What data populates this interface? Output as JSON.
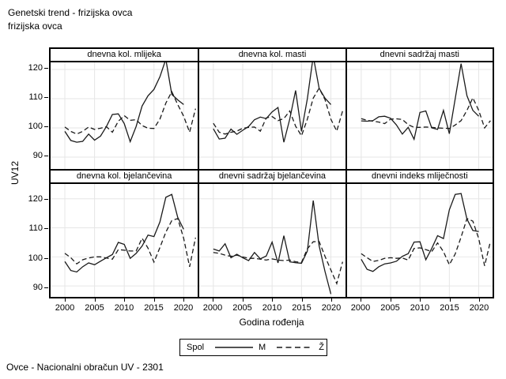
{
  "header": {
    "title_line1": "Genetski trend - frizijska ovca",
    "title_line2": "frizijska ovca"
  },
  "y_axis": {
    "label": "UV12",
    "ticks": [
      120,
      110,
      100,
      90
    ]
  },
  "x_axis": {
    "label": "Godina rođenja",
    "ticks": [
      2000,
      2005,
      2010,
      2015,
      2020
    ]
  },
  "legend": {
    "title": "Spol",
    "entries": [
      {
        "label": "M",
        "style": "solid"
      },
      {
        "label": "Ž",
        "style": "dashed"
      }
    ]
  },
  "footer": {
    "text": "Ovce - Nacionalni obračun UV - 2301"
  },
  "colors": {
    "line": "#1a1a1a",
    "grid": "#e6e6e6",
    "border": "#000000",
    "background": "#ffffff"
  },
  "chart_data": {
    "type": "line",
    "layout": "2x3 lattice, shared axes",
    "x": {
      "start_year": 2000,
      "m_end_year": 2020,
      "z_end_year": 2022,
      "tick_years": [
        2000,
        2005,
        2010,
        2015,
        2020
      ]
    },
    "ylim": [
      86,
      126
    ],
    "grid_values": [
      90,
      100,
      110,
      120
    ],
    "series_names": [
      "M",
      "Ž"
    ],
    "panels": [
      {
        "title": "dnevna kol. mlijeka",
        "M": [
          98.8,
          95.7,
          95.1,
          95.4,
          97.9,
          95.8,
          97.2,
          100.5,
          104.6,
          104.8,
          101.5,
          95.3,
          100.5,
          107.5,
          111,
          113.2,
          117.5,
          123.5,
          111.5,
          109.6,
          108
        ],
        "Z": [
          100.3,
          98.8,
          97.9,
          98.8,
          100.3,
          99.5,
          99.9,
          100.4,
          98.5,
          102.3,
          104.2,
          102.6,
          102.8,
          100.8,
          99.9,
          99.8,
          103,
          108.5,
          112.4,
          108,
          104,
          98.5,
          106.6
        ]
      },
      {
        "title": "dnevna kol. masti",
        "M": [
          99.7,
          96.2,
          96.5,
          99.6,
          97.8,
          99.2,
          100.5,
          102.8,
          103.7,
          103.2,
          105.5,
          107,
          95.1,
          103,
          112.8,
          98.8,
          110,
          124.5,
          113.6,
          110.2,
          108
        ],
        "Z": [
          101.6,
          98.5,
          97.9,
          98.5,
          98.9,
          99.9,
          100.2,
          100.3,
          98.9,
          103.4,
          103.9,
          102.5,
          103.2,
          105.8,
          100.6,
          97.3,
          103,
          110.2,
          113.6,
          109.7,
          103,
          98.9,
          105.8
        ]
      },
      {
        "title": "dnevni sadržaj masti",
        "M": [
          102.4,
          102.3,
          102.5,
          103.8,
          104,
          103.3,
          101,
          97.9,
          100.2,
          96.1,
          105.3,
          105.8,
          100,
          99.5,
          106,
          98,
          110,
          122,
          111,
          106,
          104
        ],
        "Z": [
          103.2,
          102.6,
          102.3,
          102,
          101.5,
          103,
          103.1,
          102.9,
          101.1,
          100.2,
          100.2,
          100.3,
          100.2,
          100,
          99.9,
          99.8,
          101,
          102.5,
          106,
          110.3,
          106,
          100,
          102.5
        ]
      },
      {
        "title": "dnevna kol. bjelančevina",
        "M": [
          98.4,
          95.3,
          94.8,
          96.6,
          97.9,
          97.3,
          98.5,
          99.7,
          100.8,
          105,
          104.3,
          99.5,
          101.2,
          103.7,
          107.5,
          107,
          112,
          120.5,
          121.5,
          113.6,
          109.5
        ],
        "Z": [
          101.2,
          99.7,
          97.6,
          99,
          99.6,
          100,
          100,
          99.6,
          99.2,
          102.5,
          102.3,
          102,
          102,
          106.4,
          103,
          98.2,
          103.2,
          108.5,
          112.5,
          113.2,
          106.4,
          96.6,
          106.6
        ]
      },
      {
        "title": "dnevni sadržaj bjelančevina",
        "M": [
          102.7,
          102,
          104.5,
          99.7,
          100.9,
          99.7,
          98.7,
          101.5,
          99.3,
          100.3,
          105.1,
          97.9,
          107.3,
          98.3,
          98,
          97.8,
          102,
          119.4,
          103.8,
          95,
          87.2
        ],
        "Z": [
          101.5,
          101.2,
          100.6,
          100.2,
          100.6,
          100,
          99.5,
          99.5,
          99.2,
          98.9,
          99.3,
          98.9,
          98.7,
          98.9,
          98.3,
          98.1,
          102.8,
          105.2,
          105.3,
          100.2,
          95.5,
          90.8,
          98.3
        ]
      },
      {
        "title": "dnevni indeks mliječnosti",
        "M": [
          99.2,
          95.7,
          95,
          96.6,
          97.6,
          97.9,
          98.5,
          100.2,
          101.1,
          105.1,
          105.2,
          99,
          102.9,
          107.3,
          106.3,
          116.2,
          121.5,
          121.8,
          113,
          109.1,
          108.7
        ],
        "Z": [
          101.1,
          99.7,
          98.4,
          98.8,
          99.5,
          99.7,
          99.5,
          99.6,
          98.9,
          102.9,
          103.1,
          102.5,
          101.8,
          104.8,
          101.8,
          97.3,
          101,
          106.8,
          113.2,
          112.3,
          106.3,
          96.9,
          105.4
        ]
      }
    ]
  }
}
